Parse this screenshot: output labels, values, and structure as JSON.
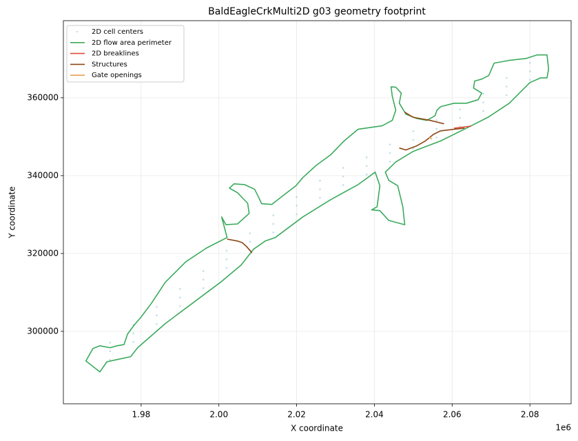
{
  "chart_data": {
    "type": "scatter",
    "title": "BaldEagleCrkMulti2D g03 geometry footprint",
    "x_label": "X coordinate",
    "y_label": "Y coordinate",
    "x_offset_label": "1e6",
    "xlim": [
      1960000,
      2090600
    ],
    "ylim": [
      281400,
      379800
    ],
    "xticks": [
      {
        "value": 1980000,
        "label": "1.98"
      },
      {
        "value": 2000000,
        "label": "2.00"
      },
      {
        "value": 2020000,
        "label": "2.02"
      },
      {
        "value": 2040000,
        "label": "2.04"
      },
      {
        "value": 2060000,
        "label": "2.06"
      },
      {
        "value": 2080000,
        "label": "2.08"
      }
    ],
    "yticks": [
      300000,
      320000,
      340000,
      360000
    ],
    "grid": true,
    "legend": "upper left",
    "series": [
      {
        "name": "2D cell centers",
        "mode": "markers",
        "color": "#a6cee3",
        "x": [
          1972000,
          1978000,
          1984000,
          1990000,
          1996000,
          2002000,
          2008000,
          2014000,
          2020000,
          2026000,
          2032000,
          2038000,
          2044000,
          2050000,
          2056000,
          2062000,
          2068000,
          2074000,
          2080000,
          1972000,
          1978000,
          1984000,
          1990000,
          1996000,
          2002000,
          2008000,
          2014000,
          2020000,
          2026000,
          2032000,
          2038000,
          2044000,
          2050000,
          2056000,
          2062000,
          2068000,
          2074000,
          2080000,
          1972000,
          1978000,
          1984000,
          1990000,
          1996000,
          2002000,
          2008000,
          2014000,
          2020000,
          2026000,
          2032000,
          2038000,
          2044000,
          2050000,
          2056000,
          2062000,
          2068000,
          2074000,
          2080000
        ],
        "y": [
          294900,
          299500,
          304100,
          308700,
          313300,
          318500,
          323000,
          327600,
          332300,
          336500,
          339800,
          342500,
          345800,
          349200,
          352000,
          354800,
          358800,
          362900,
          366800,
          297100,
          301700,
          306300,
          310900,
          315500,
          320700,
          325200,
          329800,
          334500,
          338700,
          342000,
          344700,
          348000,
          351400,
          354200,
          357000,
          361000,
          365100,
          369000,
          292700,
          297300,
          301900,
          306500,
          311100,
          316300,
          320800,
          325400,
          330100,
          334300,
          337600,
          340300,
          343600,
          347000,
          349800,
          352600,
          356600,
          360700,
          364600
        ]
      },
      {
        "name": "2D flow area perimeter",
        "mode": "line",
        "color": "#3aaa5c",
        "x": [
          1965800,
          1969400,
          1971200,
          1973500,
          1977300,
          1979100,
          1986200,
          1993300,
          2000400,
          2005700,
          2008900,
          2011900,
          2014500,
          2021600,
          2028700,
          2035800,
          2040200,
          2041400,
          2040700,
          2039300,
          2041400,
          2043700,
          2047800,
          2047300,
          2046000,
          2043700,
          2042800,
          2045500,
          2049900,
          2057000,
          2064100,
          2069400,
          2074700,
          2080000,
          2082700,
          2084400,
          2084800,
          2084400,
          2081800,
          2079100,
          2074700,
          2070800,
          2069400,
          2067600,
          2065800,
          2065500,
          2067600,
          2066700,
          2063700,
          2060500,
          2057000,
          2056100,
          2055600,
          2053500,
          2050800,
          2048100,
          2046400,
          2046900,
          2045500,
          2044300,
          2044600,
          2045500,
          2044600,
          2042000,
          2035800,
          2032200,
          2028700,
          2025100,
          2021600,
          2019800,
          2016300,
          2013600,
          2011000,
          2010100,
          2009200,
          2006600,
          2003900,
          2002700,
          2004800,
          2007400,
          2007800,
          2004800,
          2001800,
          2000700,
          2002100,
          1996800,
          1991500,
          1986200,
          1982700,
          1980000,
          1978200,
          1976500,
          1975600,
          1973800,
          1972000,
          1969400,
          1967600,
          1966700
        ],
        "y": [
          292400,
          289600,
          292200,
          292700,
          293500,
          295800,
          302000,
          307300,
          312600,
          317000,
          321100,
          323200,
          324100,
          329400,
          333800,
          337700,
          340900,
          337400,
          332000,
          331200,
          331000,
          328500,
          327400,
          332000,
          337400,
          338800,
          340900,
          343500,
          346200,
          348900,
          352400,
          355100,
          358600,
          363900,
          365100,
          365100,
          367400,
          371000,
          371000,
          370100,
          369600,
          368900,
          365700,
          364800,
          364300,
          362500,
          361200,
          359500,
          358600,
          358600,
          357700,
          356800,
          355400,
          354200,
          354700,
          355800,
          358600,
          361200,
          362700,
          362800,
          360400,
          356800,
          354200,
          352800,
          351900,
          348900,
          345300,
          342700,
          339500,
          337400,
          334700,
          332600,
          332800,
          334700,
          336500,
          337700,
          337900,
          336800,
          335600,
          332900,
          330300,
          327600,
          327400,
          329400,
          324100,
          321400,
          317900,
          312600,
          307300,
          303700,
          301600,
          299300,
          296600,
          296300,
          295800,
          296300,
          295600,
          294000
        ]
      },
      {
        "name": "2D breaklines",
        "mode": "line",
        "color": "#e04a3a",
        "x": [
          2060500,
          2064900
        ],
        "y": [
          352200,
          352700
        ]
      },
      {
        "name": "Structures",
        "mode": "line",
        "color": "#8b4513",
        "x": [
          2002100,
          2004800,
          2006000,
          2007100,
          2008500,
          null,
          2047800,
          2049900,
          2054300,
          2057900,
          null,
          2046400,
          2048100,
          2050800,
          2053100,
          2055200,
          2057000,
          2060500,
          2063200
        ],
        "y": [
          323700,
          323200,
          322800,
          321800,
          320200,
          null,
          356300,
          355000,
          354200,
          353300,
          null,
          347100,
          346600,
          347600,
          348900,
          350600,
          351500,
          351900,
          352200
        ]
      },
      {
        "name": "Gate openings",
        "mode": "line",
        "color": "#e6a050",
        "x": [
          2054000,
          2054800
        ],
        "y": [
          349900,
          349400
        ]
      }
    ]
  }
}
